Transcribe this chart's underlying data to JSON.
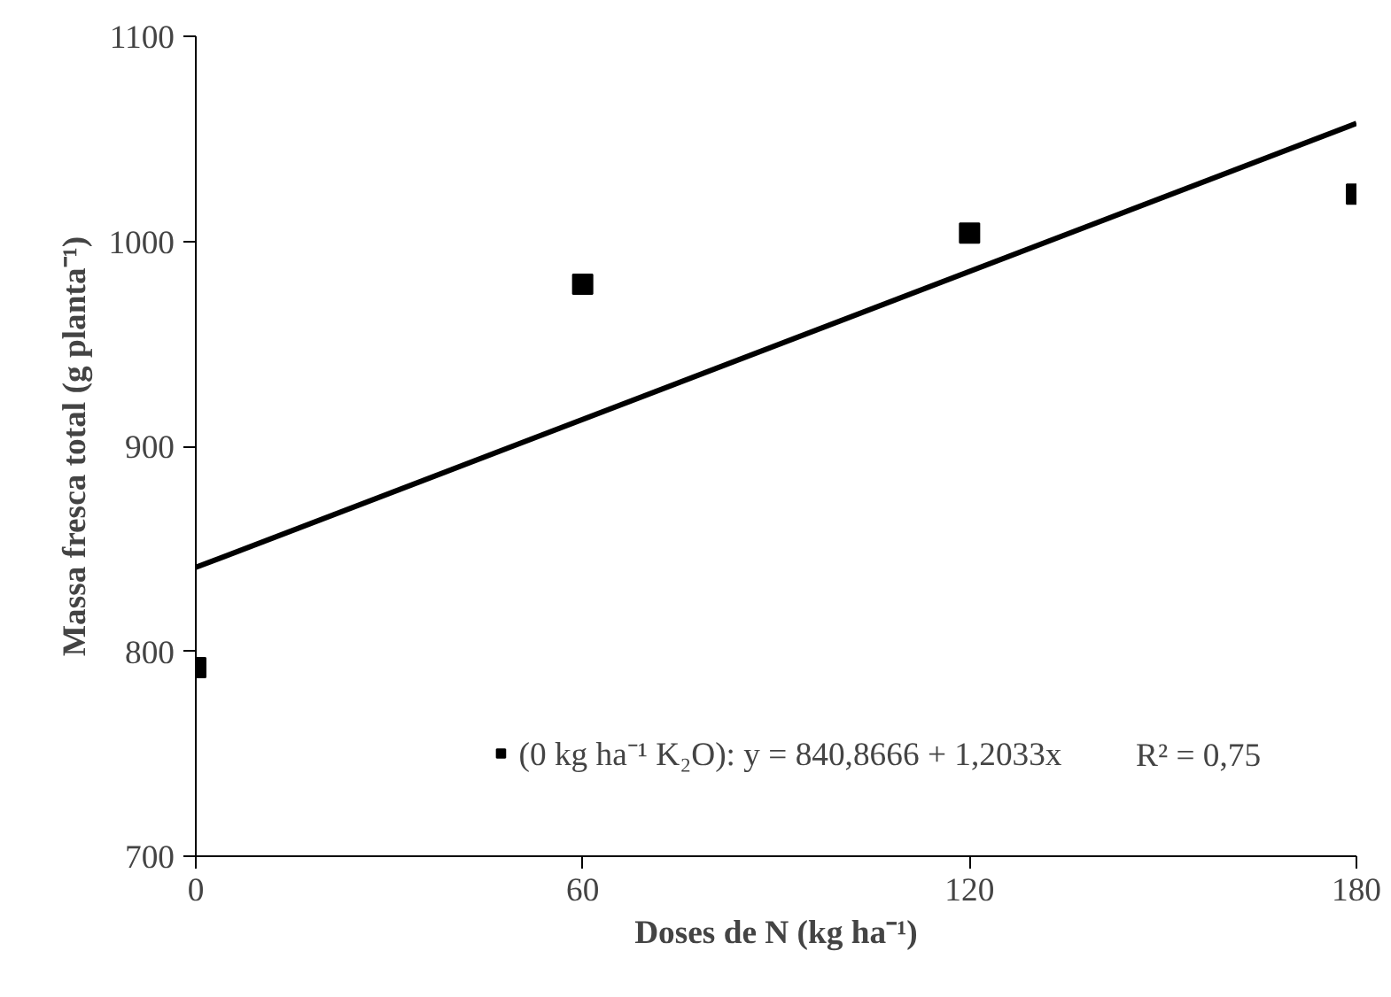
{
  "chart_data": {
    "type": "scatter",
    "xlabel": "Doses de N (kg ha⁻¹)",
    "ylabel": "Massa fresca total (g planta⁻¹)",
    "x": [
      0,
      60,
      120,
      180
    ],
    "series": [
      {
        "name": "(0 kg ha⁻¹ K₂O): y = 840,8666 + 1,2033x",
        "color": "#000000",
        "marker": "square",
        "values": [
          792,
          979,
          1004,
          1023
        ]
      },
      {
        "type": "line",
        "color": "#000000",
        "x": [
          0,
          180
        ],
        "values": [
          840.9,
          1057.5
        ]
      }
    ],
    "annotations": [
      "R² = 0,75"
    ],
    "xlim": [
      0,
      180
    ],
    "xticks": [
      0,
      60,
      120,
      180
    ],
    "ylim": [
      700,
      1100
    ],
    "yticks": [
      700,
      800,
      900,
      1000,
      1100
    ],
    "grid": false,
    "legend": "bottom"
  }
}
